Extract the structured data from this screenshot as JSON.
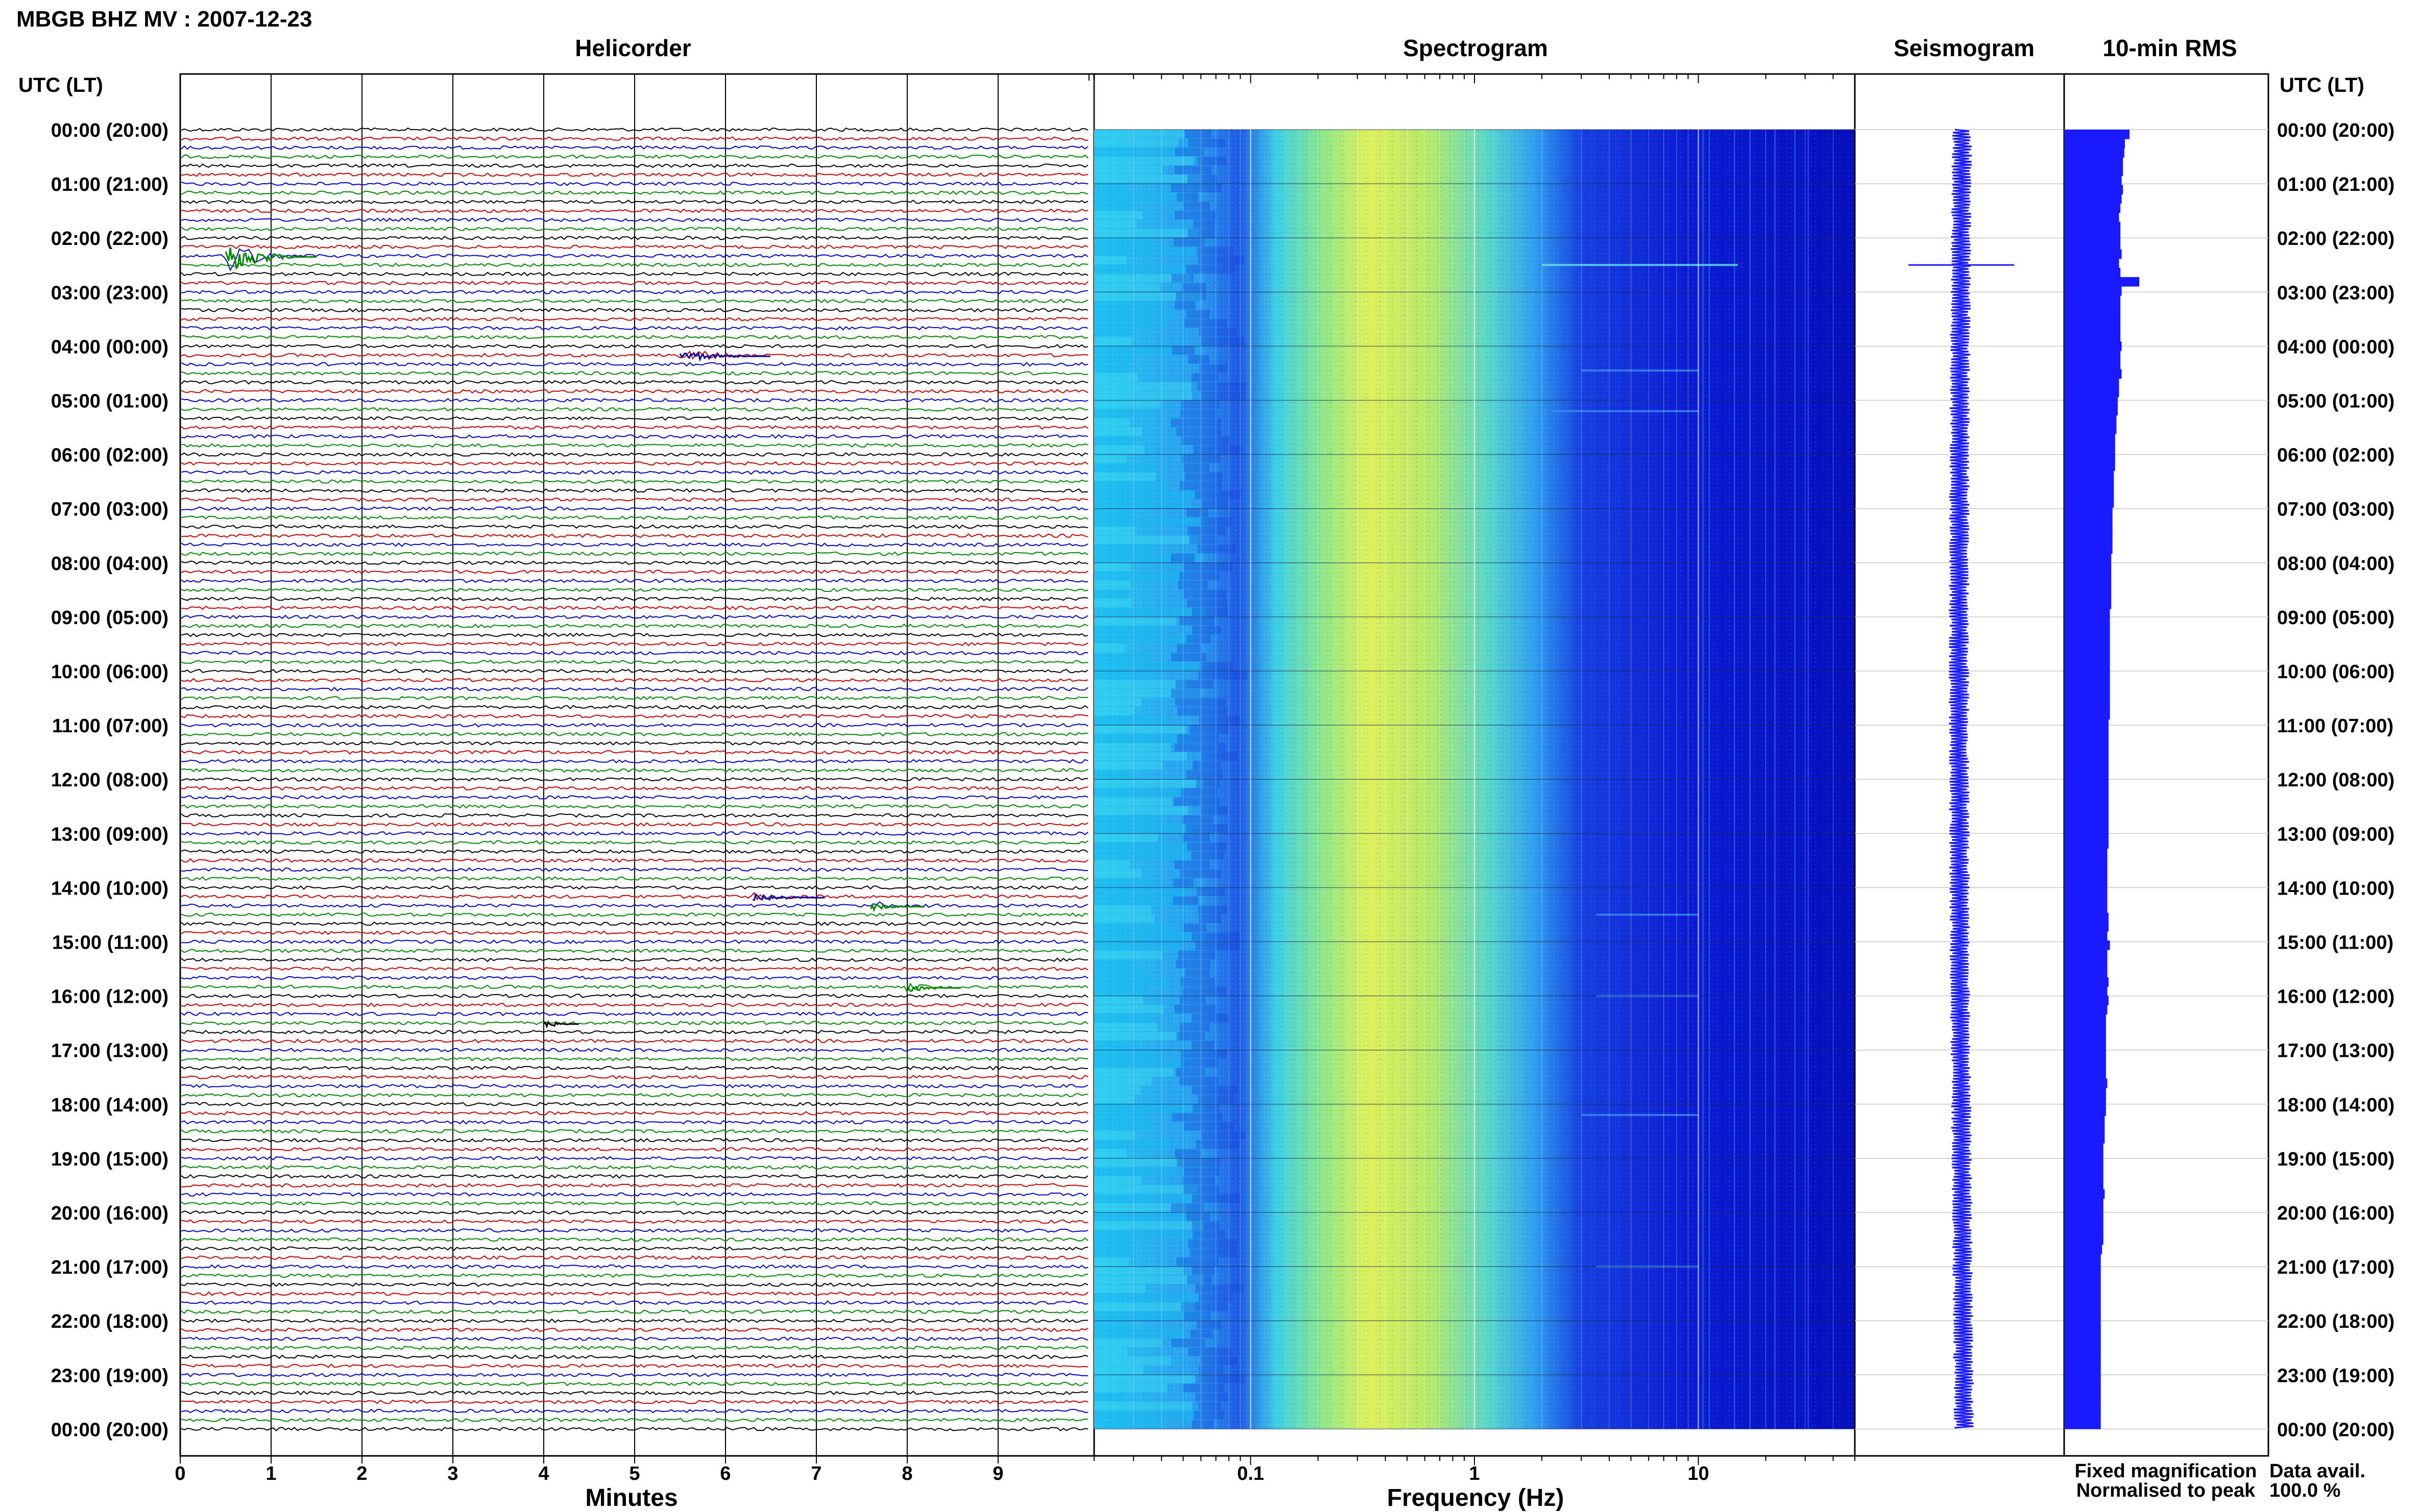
{
  "header": {
    "title": "MBGB BHZ MV : 2007-12-23"
  },
  "panels": {
    "helicorder": "Helicorder",
    "spectrogram": "Spectrogram",
    "seismogram": "Seismogram",
    "rms": "10-min RMS"
  },
  "axes": {
    "time_header_left": "UTC (LT)",
    "time_header_right": "UTC (LT)",
    "minutes_label": "Minutes",
    "frequency_label": "Frequency (Hz)"
  },
  "legend": {
    "fixed": "Fixed magnification",
    "fixed_color": "#1a1aff",
    "normalised": "Normalised to peak",
    "normalised_color": "#ff1a1a"
  },
  "data_availability": {
    "label": "Data avail.",
    "value": "100.0 %"
  },
  "chart_data": {
    "type": "helicorder",
    "time_labels": [
      "00:00 (20:00)",
      "01:00 (21:00)",
      "02:00 (22:00)",
      "03:00 (23:00)",
      "04:00 (00:00)",
      "05:00 (01:00)",
      "06:00 (02:00)",
      "07:00 (03:00)",
      "08:00 (04:00)",
      "09:00 (05:00)",
      "10:00 (06:00)",
      "11:00 (07:00)",
      "12:00 (08:00)",
      "13:00 (09:00)",
      "14:00 (10:00)",
      "15:00 (11:00)",
      "16:00 (12:00)",
      "17:00 (13:00)",
      "18:00 (14:00)",
      "19:00 (15:00)",
      "20:00 (16:00)",
      "21:00 (17:00)",
      "22:00 (18:00)",
      "23:00 (19:00)",
      "00:00 (20:00)"
    ],
    "minutes_ticks": [
      "0",
      "1",
      "2",
      "3",
      "4",
      "5",
      "6",
      "7",
      "8",
      "9"
    ],
    "minutes_range": [
      0,
      10
    ],
    "frequency_ticks": [
      {
        "value": 0.1,
        "label": "0.1"
      },
      {
        "value": 1,
        "label": "1"
      },
      {
        "value": 10,
        "label": "10"
      }
    ],
    "frequency_range": [
      0.02,
      50
    ],
    "frequency_scale": "log",
    "rows_per_hour": 6,
    "trace_colors": [
      "#000000",
      "#cc0000",
      "#0000cc",
      "#008800"
    ],
    "events": [
      {
        "hour": 2.333,
        "minute": 0.5,
        "duration": 1.0,
        "amplitude": 1.0,
        "color": "#008800"
      },
      {
        "hour": 4.167,
        "minute": 5.5,
        "duration": 1.0,
        "amplitude": 0.35,
        "color": "#0000aa"
      },
      {
        "hour": 14.167,
        "minute": 6.3,
        "duration": 0.8,
        "amplitude": 0.3,
        "color": "#0000aa"
      },
      {
        "hour": 14.333,
        "minute": 7.6,
        "duration": 0.6,
        "amplitude": 0.25,
        "color": "#008800"
      },
      {
        "hour": 15.833,
        "minute": 8.0,
        "duration": 0.6,
        "amplitude": 0.3,
        "color": "#008800"
      },
      {
        "hour": 16.5,
        "minute": 4.0,
        "duration": 0.4,
        "amplitude": 0.25,
        "color": "#000000"
      }
    ],
    "seismogram_spike_hour": 2.5,
    "rms_values": [
      1.0,
      0.93,
      0.92,
      0.9,
      0.9,
      0.88,
      0.9,
      0.88,
      0.86,
      0.84,
      0.86,
      0.86,
      0.86,
      0.88,
      0.84,
      0.86,
      1.15,
      0.88,
      0.86,
      0.86,
      0.86,
      0.86,
      0.86,
      0.88,
      0.86,
      0.86,
      0.88,
      0.84,
      0.84,
      0.82,
      0.82,
      0.8,
      0.8,
      0.78,
      0.78,
      0.78,
      0.78,
      0.76,
      0.76,
      0.76,
      0.76,
      0.74,
      0.74,
      0.74,
      0.74,
      0.74,
      0.72,
      0.72,
      0.72,
      0.72,
      0.72,
      0.72,
      0.7,
      0.7,
      0.7,
      0.7,
      0.7,
      0.7,
      0.7,
      0.7,
      0.7,
      0.7,
      0.7,
      0.7,
      0.68,
      0.68,
      0.68,
      0.68,
      0.68,
      0.68,
      0.68,
      0.68,
      0.68,
      0.68,
      0.68,
      0.68,
      0.68,
      0.68,
      0.66,
      0.66,
      0.66,
      0.66,
      0.66,
      0.66,
      0.66,
      0.68,
      0.68,
      0.66,
      0.7,
      0.66,
      0.66,
      0.66,
      0.68,
      0.66,
      0.68,
      0.66,
      0.64,
      0.64,
      0.64,
      0.64,
      0.64,
      0.64,
      0.64,
      0.66,
      0.64,
      0.64,
      0.64,
      0.62,
      0.62,
      0.62,
      0.6,
      0.6,
      0.6,
      0.6,
      0.6,
      0.62,
      0.6,
      0.6,
      0.6,
      0.6,
      0.6,
      0.58,
      0.56,
      0.56,
      0.56,
      0.56,
      0.56,
      0.56,
      0.56,
      0.56,
      0.56,
      0.56,
      0.56,
      0.56,
      0.56,
      0.56,
      0.56,
      0.56,
      0.56,
      0.56,
      0.56
    ]
  }
}
